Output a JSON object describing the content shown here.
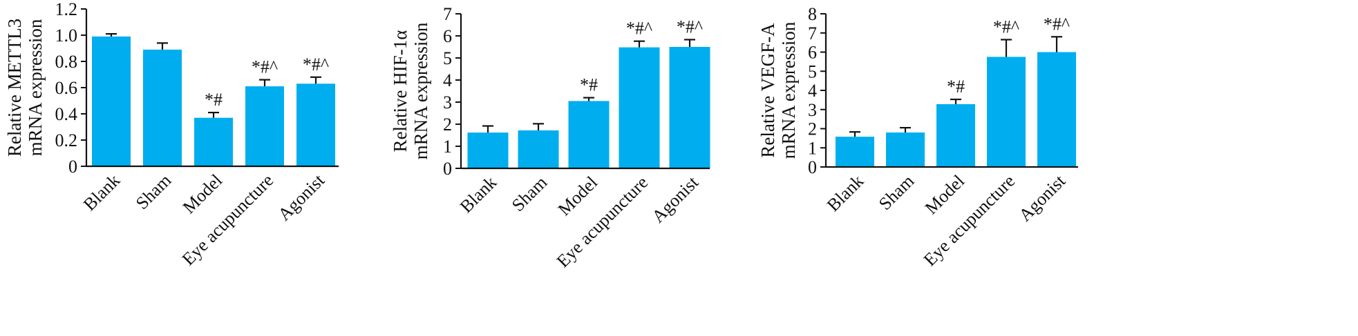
{
  "figure": {
    "colors": {
      "bar": "#00AEEF",
      "axis": "#111111",
      "error_bar": "#111111"
    }
  },
  "chart_data": [
    {
      "type": "bar",
      "categories": [
        "Blank",
        "Sham",
        "Model",
        "Eye acupuncture",
        "Agonist"
      ],
      "values": [
        0.99,
        0.89,
        0.37,
        0.61,
        0.63
      ],
      "error": [
        0.02,
        0.05,
        0.04,
        0.05,
        0.05
      ],
      "annotations": [
        "",
        "",
        "*#",
        "*#^",
        "*#^"
      ],
      "ylabel": [
        "Relative METTL3",
        "mRNA expression"
      ],
      "ylim": [
        0,
        1.2
      ],
      "yticks": [
        0,
        0.2,
        0.4,
        0.6,
        0.8,
        1.0,
        1.2
      ],
      "ytick_labels": [
        "0",
        "0.2",
        "0.4",
        "0.6",
        "0.8",
        "1.0",
        "1.2"
      ],
      "grid": false
    },
    {
      "type": "bar",
      "categories": [
        "Blank",
        "Sham",
        "Model",
        "Eye acupuncture",
        "Agonist"
      ],
      "values": [
        1.62,
        1.72,
        3.05,
        5.48,
        5.5
      ],
      "error": [
        0.3,
        0.3,
        0.15,
        0.28,
        0.33
      ],
      "annotations": [
        "",
        "",
        "*#",
        "*#^",
        "*#^"
      ],
      "ylabel": [
        "Relative HIF-1α",
        "mRNA expression"
      ],
      "ylim": [
        0,
        7
      ],
      "yticks": [
        0,
        1,
        2,
        3,
        4,
        5,
        6,
        7
      ],
      "ytick_labels": [
        "0",
        "1",
        "2",
        "3",
        "4",
        "5",
        "6",
        "7"
      ],
      "grid": false
    },
    {
      "type": "bar",
      "categories": [
        "Blank",
        "Sham",
        "Model",
        "Eye acupuncture",
        "Agonist"
      ],
      "values": [
        1.58,
        1.8,
        3.28,
        5.75,
        6.0
      ],
      "error": [
        0.25,
        0.25,
        0.25,
        0.9,
        0.8
      ],
      "annotations": [
        "",
        "",
        "*#",
        "*#^",
        "*#^"
      ],
      "ylabel": [
        "Relative VEGF-A",
        "mRNA expression"
      ],
      "ylim": [
        0,
        8
      ],
      "yticks": [
        0,
        1,
        2,
        3,
        4,
        5,
        6,
        7,
        8
      ],
      "ytick_labels": [
        "0",
        "1",
        "2",
        "3",
        "4",
        "5",
        "6",
        "7",
        "8"
      ],
      "grid": false
    }
  ]
}
